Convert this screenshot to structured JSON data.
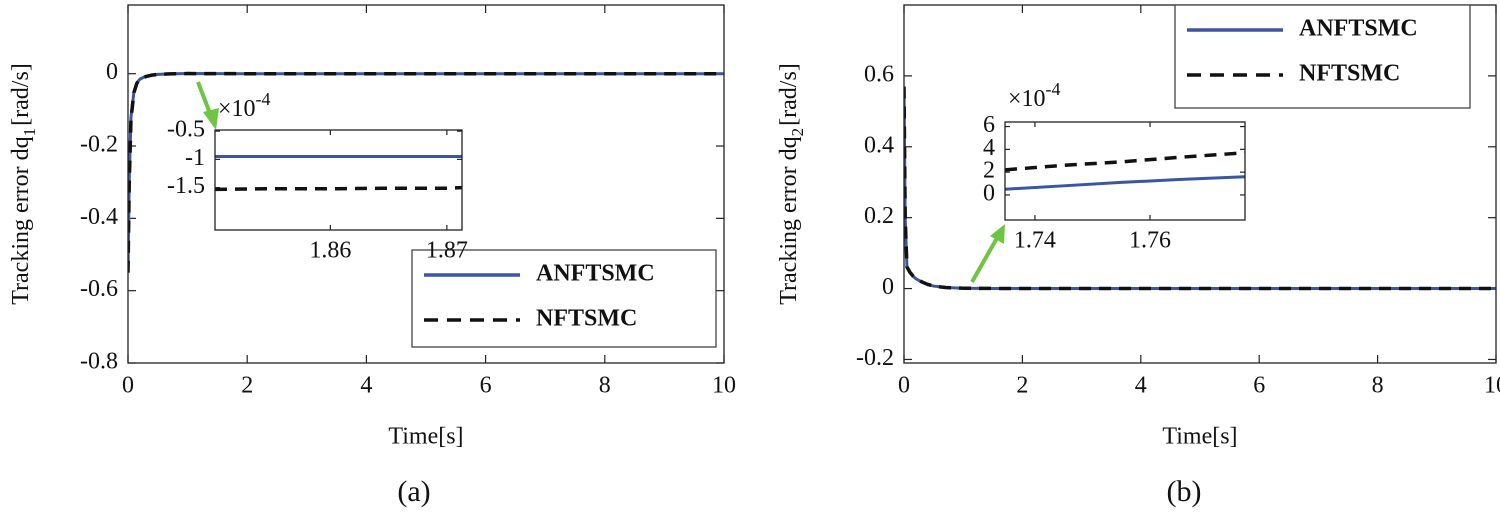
{
  "chart_data": [
    {
      "type": "line",
      "caption": "(a)",
      "xlabel": "Time[s]",
      "ylabel": {
        "text": "Tracking error dq",
        "sub": "1",
        "unit": "[rad/s]"
      },
      "xlim": [
        0,
        10
      ],
      "xticks": [
        0,
        2,
        4,
        6,
        8,
        10
      ],
      "ylim": [
        -0.8,
        0.19
      ],
      "yticks": [
        -0.8,
        -0.6,
        -0.4,
        -0.2,
        0
      ],
      "legend": "lower right",
      "x": [
        0,
        0.02,
        0.05,
        0.1,
        0.15,
        0.2,
        0.3,
        0.4,
        0.5,
        0.7,
        1,
        1.5,
        2,
        3,
        4,
        5,
        6,
        7,
        8,
        9,
        10
      ],
      "series": [
        {
          "name": "ANFTSMC",
          "color": "#3a55a4",
          "style": "solid",
          "values": [
            -0.55,
            -0.3,
            -0.12,
            -0.05,
            -0.025,
            -0.015,
            -0.007,
            -0.004,
            -0.002,
            -0.0005,
            0.0005,
            0.0003,
            0,
            0,
            0,
            0,
            0,
            0,
            0,
            0,
            0
          ]
        },
        {
          "name": "NFTSMC",
          "color": "#111111",
          "style": "dashed",
          "values": [
            -0.55,
            -0.31,
            -0.125,
            -0.052,
            -0.026,
            -0.016,
            -0.008,
            -0.004,
            -0.002,
            -0.0006,
            0.0004,
            0.0003,
            0,
            0,
            0,
            0,
            0,
            0,
            0,
            0,
            0
          ]
        }
      ],
      "inset": {
        "scale_label": {
          "base": "×10",
          "exp": "-4"
        },
        "xlim": [
          1.8501,
          1.8713
        ],
        "xticks": [
          1.86,
          1.87
        ],
        "ylim": [
          -2.25,
          -0.48
        ],
        "yticks": [
          -1.5,
          -1,
          -0.5
        ],
        "x": [
          1.8501,
          1.855,
          1.86,
          1.865,
          1.87,
          1.8713
        ],
        "series": [
          {
            "name": "ANFTSMC",
            "color": "#3a55a4",
            "style": "solid",
            "values": [
              -0.95,
              -0.95,
              -0.95,
              -0.95,
              -0.95,
              -0.95
            ]
          },
          {
            "name": "NFTSMC",
            "color": "#111111",
            "style": "dashed",
            "values": [
              -1.53,
              -1.52,
              -1.52,
              -1.51,
              -1.51,
              -1.5
            ]
          }
        ]
      }
    },
    {
      "type": "line",
      "caption": "(b)",
      "xlabel": "Time[s]",
      "ylabel": {
        "text": "Tracking error dq",
        "sub": "2",
        "unit": "[rad/s]"
      },
      "xlim": [
        0,
        10
      ],
      "xticks": [
        0,
        2,
        4,
        6,
        8,
        10
      ],
      "ylim": [
        -0.21,
        0.8
      ],
      "yticks": [
        -0.2,
        0,
        0.2,
        0.4,
        0.6
      ],
      "legend": "upper right",
      "x": [
        0,
        0.02,
        0.05,
        0.1,
        0.15,
        0.2,
        0.3,
        0.4,
        0.5,
        0.7,
        1,
        1.5,
        2,
        3,
        4,
        5,
        6,
        7,
        8,
        9,
        10
      ],
      "series": [
        {
          "name": "ANFTSMC",
          "color": "#3a55a4",
          "style": "solid",
          "values": [
            0.57,
            0.2,
            0.06,
            0.045,
            0.035,
            0.028,
            0.018,
            0.011,
            0.007,
            0.003,
            0.001,
            0.0003,
            0,
            0,
            0,
            0,
            0,
            0,
            0,
            0,
            0
          ]
        },
        {
          "name": "NFTSMC",
          "color": "#111111",
          "style": "dashed",
          "values": [
            0.57,
            0.2,
            0.061,
            0.046,
            0.036,
            0.029,
            0.019,
            0.012,
            0.007,
            0.003,
            0.001,
            0.0004,
            0,
            0,
            0,
            0,
            0,
            0,
            0,
            0,
            0
          ]
        }
      ],
      "inset": {
        "scale_label": {
          "base": "×10",
          "exp": "-4"
        },
        "xlim": [
          1.7348,
          1.7765
        ],
        "xticks": [
          1.74,
          1.76
        ],
        "ylim": [
          -2.2,
          6.4
        ],
        "yticks": [
          0,
          2,
          4,
          6
        ],
        "x": [
          1.7348,
          1.745,
          1.755,
          1.765,
          1.7765
        ],
        "series": [
          {
            "name": "ANFTSMC",
            "color": "#3a55a4",
            "style": "solid",
            "values": [
              0.5,
              0.8,
              1.1,
              1.35,
              1.6
            ]
          },
          {
            "name": "NFTSMC",
            "color": "#111111",
            "style": "dashed",
            "values": [
              2.2,
              2.6,
              2.9,
              3.3,
              3.7
            ]
          }
        ]
      }
    }
  ]
}
